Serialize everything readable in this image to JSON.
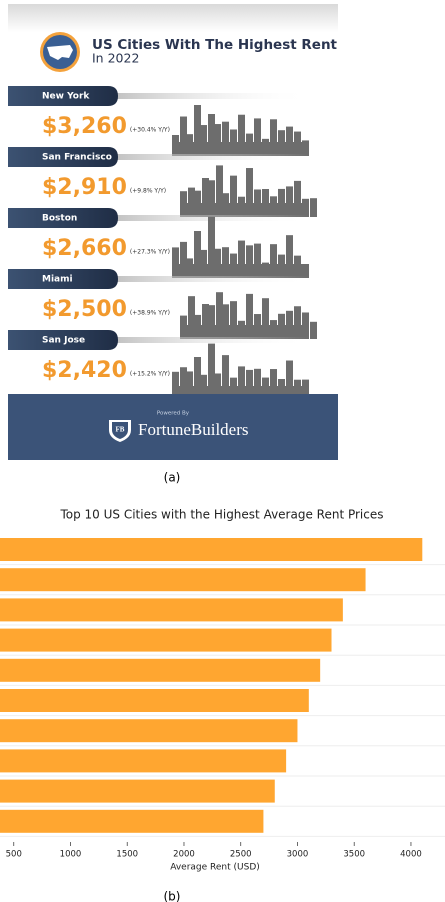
{
  "infographic": {
    "title": "US Cities With The Highest Rent",
    "subtitle": "In 2022",
    "cities": [
      {
        "name": "New York",
        "price": "$3,260",
        "change": "(+30.4% Y/Y)"
      },
      {
        "name": "San Francisco",
        "price": "$2,910",
        "change": "(+9.8% Y/Y)"
      },
      {
        "name": "Boston",
        "price": "$2,660",
        "change": "(+27.3% Y/Y)"
      },
      {
        "name": "Miami",
        "price": "$2,500",
        "change": "(+38.9% Y/Y)"
      },
      {
        "name": "San Jose",
        "price": "$2,420",
        "change": "(+15.2% Y/Y)"
      }
    ],
    "footer": {
      "powered_by": "Powered By",
      "logo": "FB",
      "brand": "FortuneBuilders"
    },
    "caption": "(a)"
  },
  "chart_data": {
    "type": "bar",
    "orientation": "horizontal",
    "title": "Top 10 US Cities with the Highest Average Rent Prices",
    "xlabel": "Average Rent (USD)",
    "categories": [
      null,
      null,
      null,
      null,
      null,
      null,
      null,
      null,
      null,
      null
    ],
    "values": [
      4100,
      3600,
      3400,
      3300,
      3200,
      3100,
      3000,
      2900,
      2800,
      2700
    ],
    "color": "#ffa630",
    "xlim": [
      0,
      4300
    ],
    "xticks": [
      500,
      1000,
      1500,
      2000,
      2500,
      3000,
      3500,
      4000
    ],
    "caption": "(b)"
  }
}
